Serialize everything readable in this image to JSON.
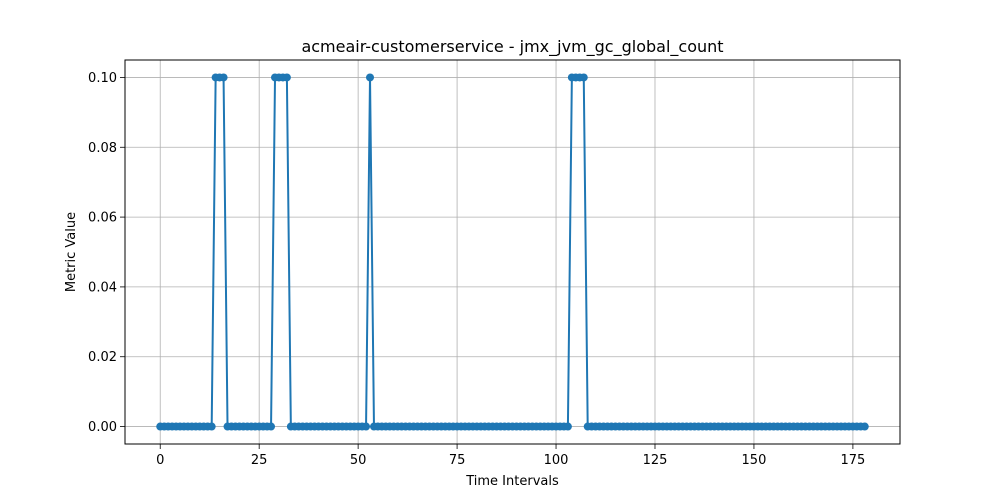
{
  "chart_data": {
    "type": "line",
    "title": "acmeair-customerservice - jmx_jvm_gc_global_count",
    "xlabel": "Time Intervals",
    "ylabel": "Metric Value",
    "xlim": [
      -8.9,
      186.9
    ],
    "ylim": [
      -0.005,
      0.105
    ],
    "xticks": [
      0,
      25,
      50,
      75,
      100,
      125,
      150,
      175
    ],
    "yticks": [
      0.0,
      0.02,
      0.04,
      0.06,
      0.08,
      0.1
    ],
    "ytick_labels": [
      "0.00",
      "0.02",
      "0.04",
      "0.06",
      "0.08",
      "0.10"
    ],
    "grid": true,
    "series": [
      {
        "color": "#1f77b4",
        "marker": "circle",
        "x_start": 0,
        "x_end": 178,
        "baseline": 0.0,
        "spikes": [
          {
            "x": 14,
            "y": 0.1
          },
          {
            "x": 15,
            "y": 0.1
          },
          {
            "x": 16,
            "y": 0.1
          },
          {
            "x": 29,
            "y": 0.1
          },
          {
            "x": 30,
            "y": 0.1
          },
          {
            "x": 31,
            "y": 0.1
          },
          {
            "x": 32,
            "y": 0.1
          },
          {
            "x": 53,
            "y": 0.1
          },
          {
            "x": 104,
            "y": 0.1
          },
          {
            "x": 105,
            "y": 0.1
          },
          {
            "x": 106,
            "y": 0.1
          },
          {
            "x": 107,
            "y": 0.1
          }
        ]
      }
    ]
  }
}
